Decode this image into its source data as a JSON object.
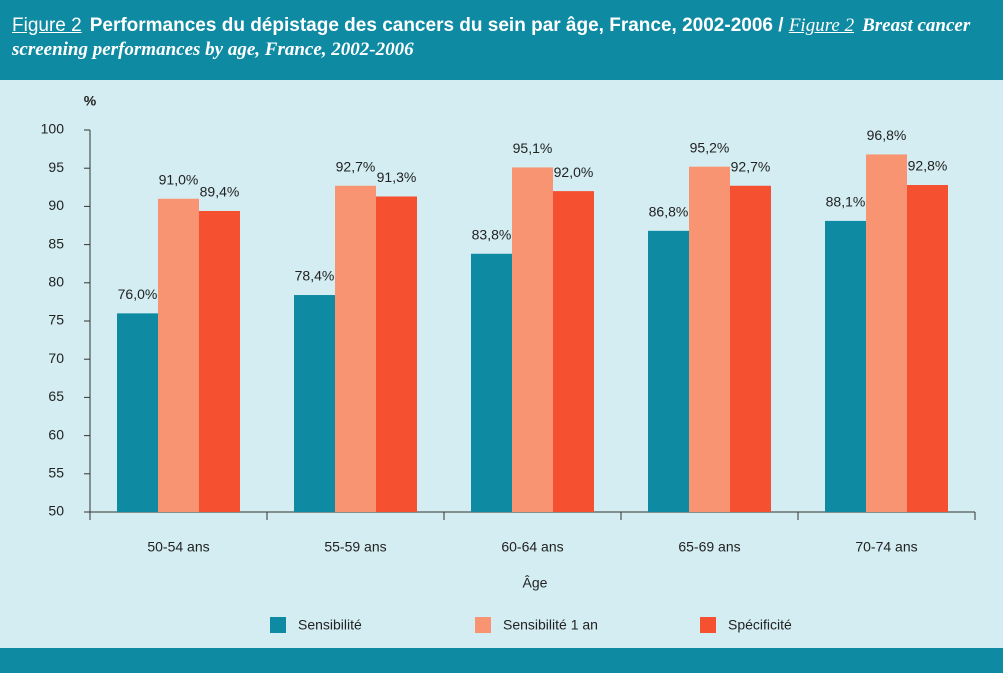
{
  "chart_data": {
    "type": "bar",
    "figure_label_fr": "Figure 2",
    "title_fr": "Performances du dépistage des cancers du sein par âge, France, 2002-2006 /",
    "figure_label_en": "Figure 2",
    "title_en": "Breast cancer screening performances by age, France, 2002-2006",
    "y_unit": "%",
    "x_label": "Âge",
    "categories": [
      "50-54 ans",
      "55-59 ans",
      "60-64 ans",
      "65-69 ans",
      "70-74 ans"
    ],
    "series": [
      {
        "name": "Sensibilité",
        "color": "#0f8aa3",
        "values": [
          76.0,
          78.4,
          83.8,
          86.8,
          88.1
        ],
        "value_labels": [
          "76,0%",
          "78,4%",
          "83,8%",
          "86,8%",
          "88,1%"
        ]
      },
      {
        "name": "Sensibilité 1 an",
        "color": "#f99472",
        "values": [
          91.0,
          92.7,
          95.1,
          95.2,
          96.8
        ],
        "value_labels": [
          "91,0%",
          "92,7%",
          "95,1%",
          "95,2%",
          "96,8%"
        ]
      },
      {
        "name": "Spécificité",
        "color": "#f5502f",
        "values": [
          89.4,
          91.3,
          92.0,
          92.7,
          92.8
        ],
        "value_labels": [
          "89,4%",
          "91,3%",
          "92,0%",
          "92,7%",
          "92,8%"
        ]
      }
    ],
    "ylim": [
      50,
      100
    ],
    "yticks": [
      50,
      55,
      60,
      65,
      70,
      75,
      80,
      85,
      90,
      95,
      100
    ]
  }
}
